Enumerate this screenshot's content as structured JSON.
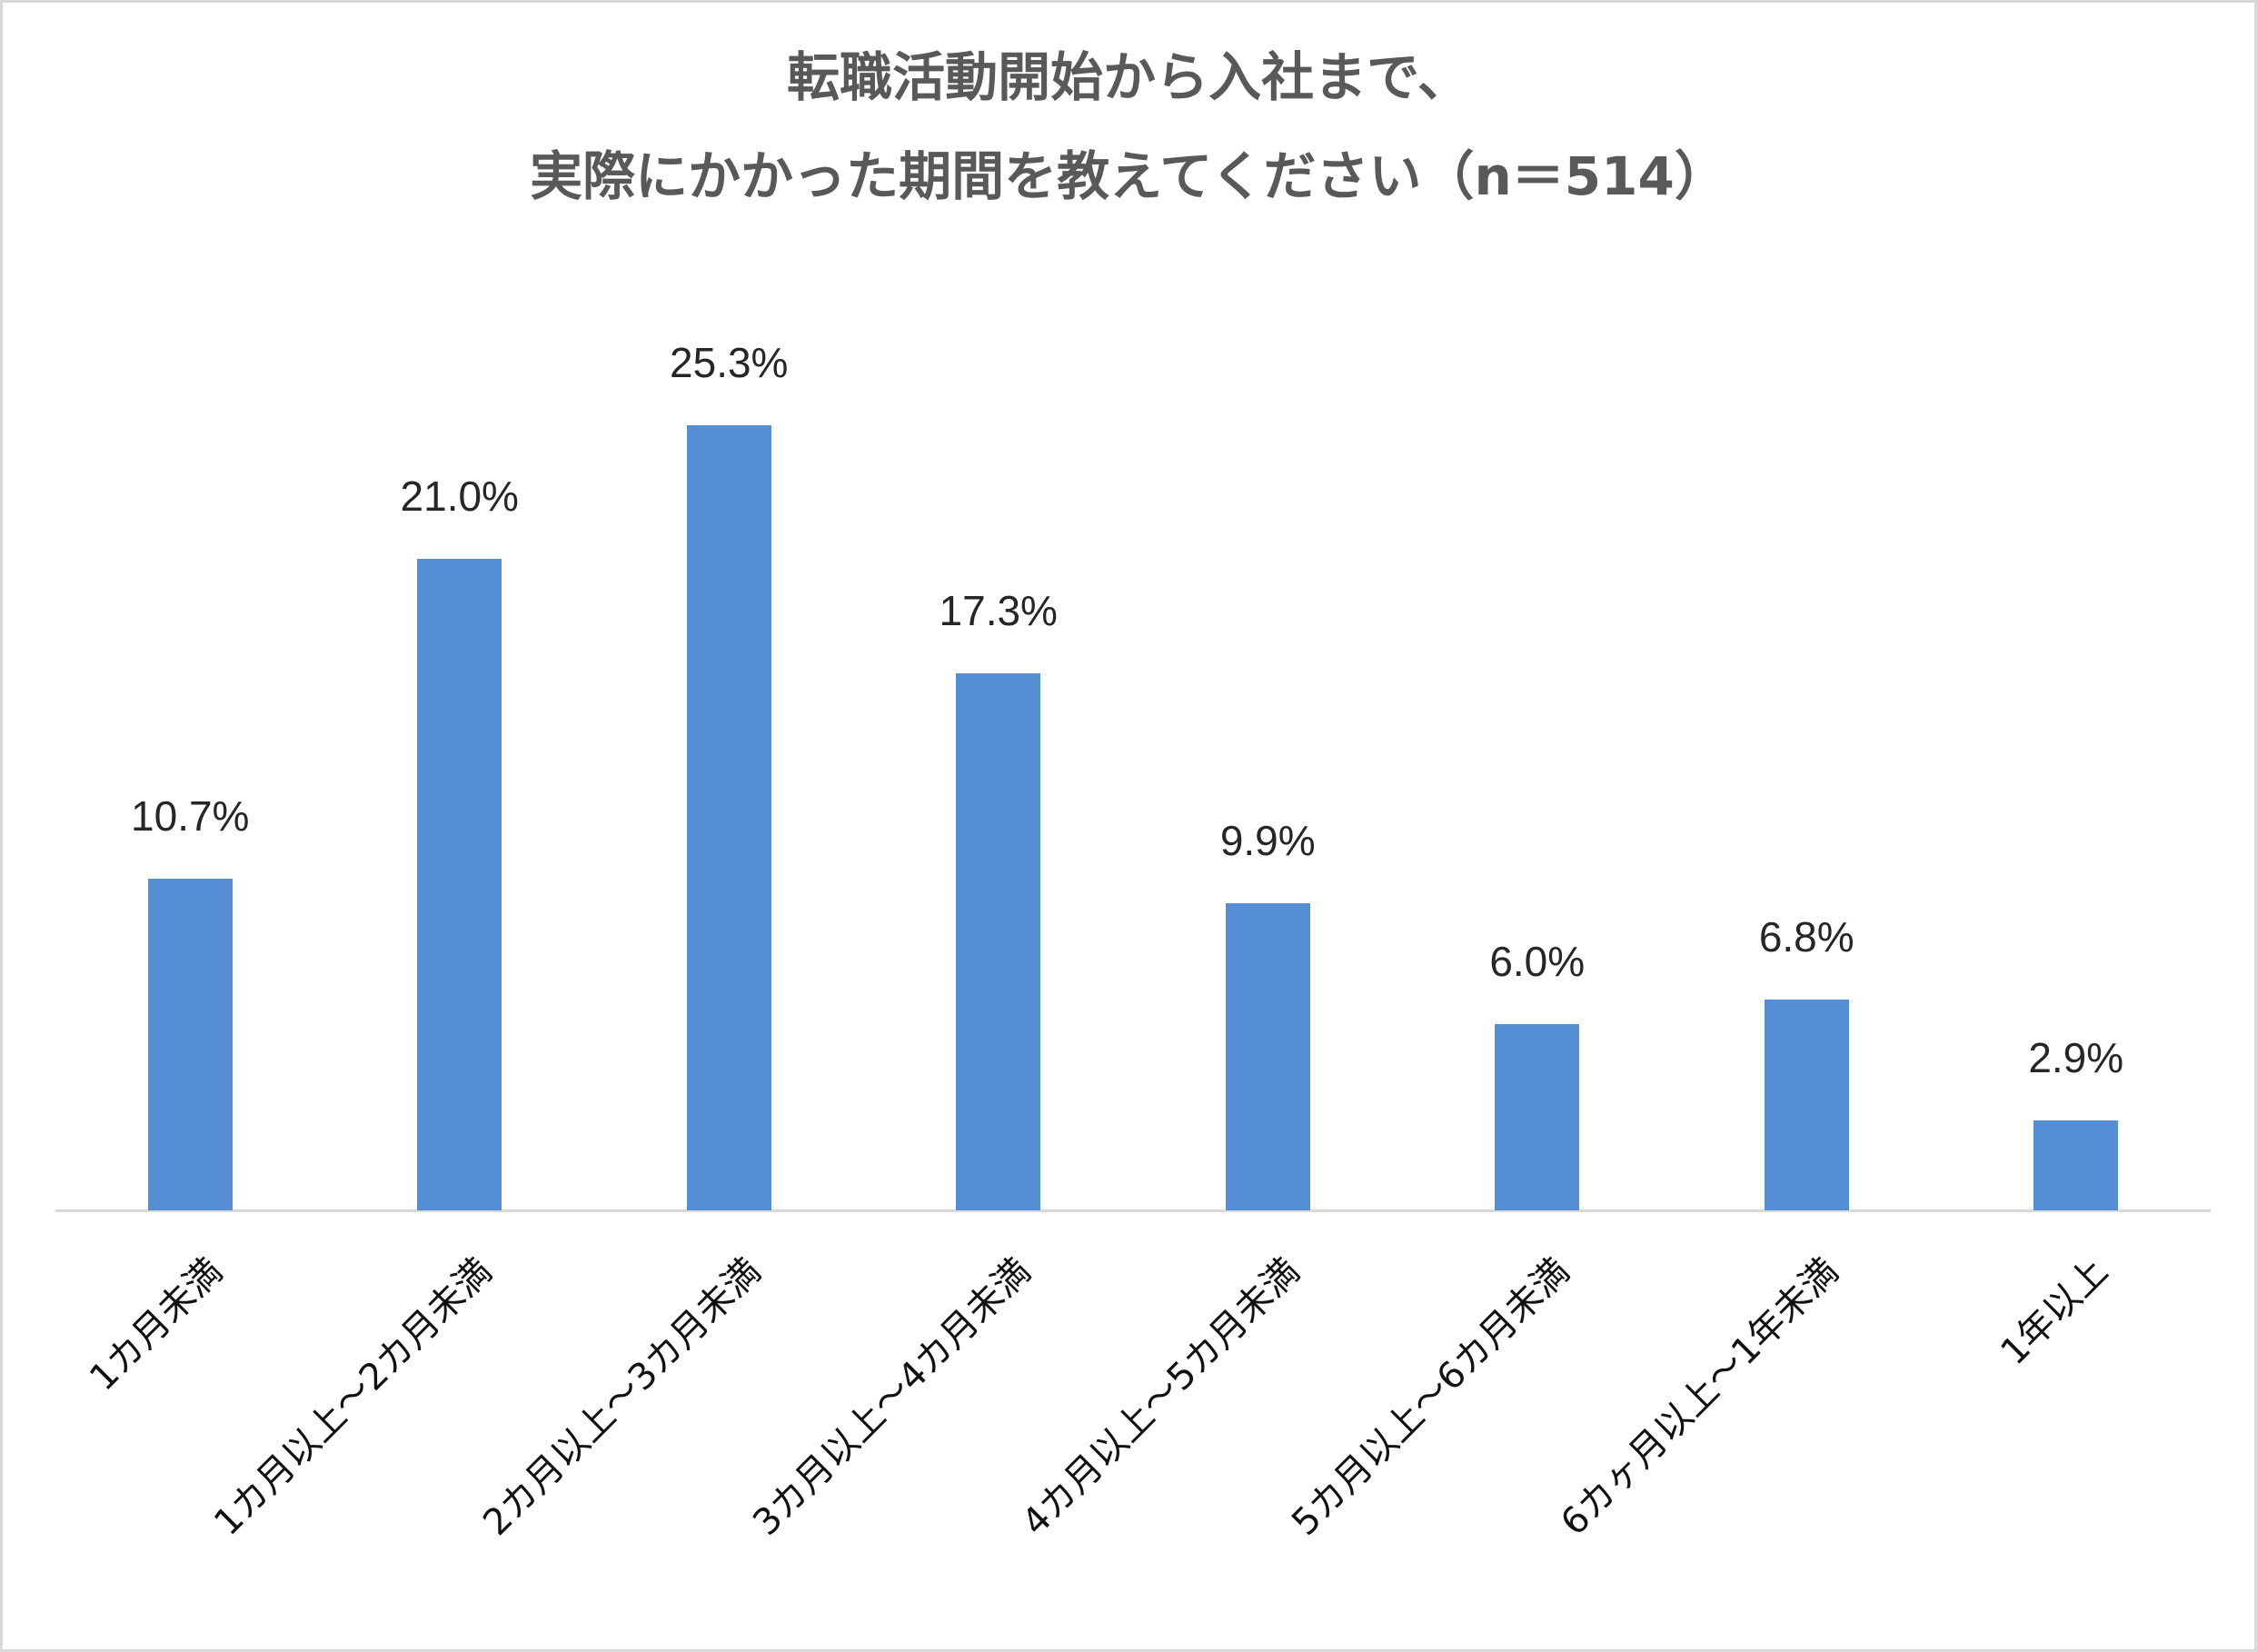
{
  "chart_data": {
    "type": "bar",
    "title": "転職活動開始から入社まで、実際にかかった期間を教えてください（n＝514）",
    "title_lines": [
      "転職活動開始から入社まで、",
      "実際にかかった期間を教えてください（n＝514）"
    ],
    "categories": [
      "1カ月未満",
      "1カ月以上～2カ月未満",
      "2カ月以上～3カ月未満",
      "3カ月以上～4カ月未満",
      "4カ月以上～5カ月未満",
      "5カ月以上～6カ月未満",
      "6カヶ月以上～1年未満",
      "1年以上"
    ],
    "values": [
      10.7,
      21.0,
      25.3,
      17.3,
      9.9,
      6.0,
      6.8,
      2.9
    ],
    "value_labels": [
      "10.7%",
      "21.0%",
      "25.3%",
      "17.3%",
      "9.9%",
      "6.0%",
      "6.8%",
      "2.9%"
    ],
    "unit": "%",
    "xlabel": "",
    "ylabel": "",
    "ylim": [
      0,
      28
    ],
    "grid": false,
    "legend": null,
    "x_tick_rotation": -45,
    "colors": {
      "bar": "#558ed5",
      "title": "#595959",
      "axis": "#d9d9d9",
      "label": "#262626"
    }
  }
}
